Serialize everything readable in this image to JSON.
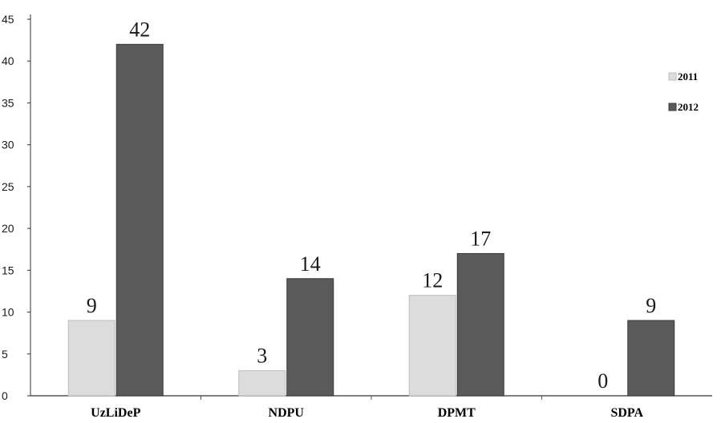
{
  "chart_data": {
    "type": "bar",
    "categories": [
      "UzLiDeP",
      "NDPU",
      "DPMT",
      "SDPA"
    ],
    "series": [
      {
        "name": "2011",
        "values": [
          9,
          3,
          12,
          0
        ],
        "color": "#dcdcdc"
      },
      {
        "name": "2012",
        "values": [
          42,
          14,
          17,
          9
        ],
        "color": "#5a5a5a"
      }
    ],
    "ylim": [
      0,
      45
    ],
    "yticks": [
      "0",
      "5",
      "10",
      "15",
      "20",
      "25",
      "30",
      "35",
      "40",
      "45"
    ],
    "data_labels": [
      [
        "9",
        "3",
        "12",
        "0"
      ],
      [
        "42",
        "14",
        "17",
        "9"
      ]
    ],
    "grid": false,
    "legend_position": "top-right"
  }
}
